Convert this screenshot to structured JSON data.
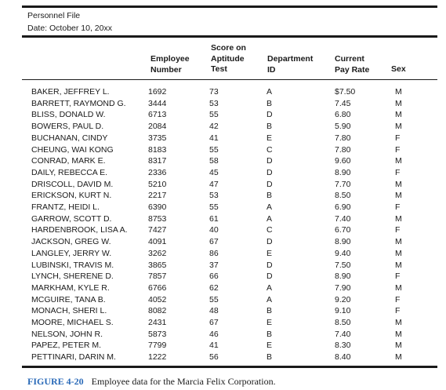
{
  "header": {
    "line1": "Personnel File",
    "line2": "Date: October 10, 20xx"
  },
  "columns": {
    "emp": [
      "Employee",
      "Number"
    ],
    "score": [
      "Score on",
      "Aptitude",
      "Test"
    ],
    "dept": [
      "Department",
      "ID"
    ],
    "pay": [
      "Current",
      "Pay Rate"
    ],
    "sex": [
      "Sex"
    ]
  },
  "rows": [
    {
      "name": "BAKER, JEFFREY L.",
      "emp": "1692",
      "score": "73",
      "dept": "A",
      "pay": "$7.50",
      "sex": "M"
    },
    {
      "name": "BARRETT, RAYMOND G.",
      "emp": "3444",
      "score": "53",
      "dept": "B",
      "pay": "7.45",
      "sex": "M"
    },
    {
      "name": "BLISS, DONALD W.",
      "emp": "6713",
      "score": "55",
      "dept": "D",
      "pay": "6.80",
      "sex": "M"
    },
    {
      "name": "BOWERS, PAUL D.",
      "emp": "2084",
      "score": "42",
      "dept": "B",
      "pay": "5.90",
      "sex": "M"
    },
    {
      "name": "BUCHANAN, CINDY",
      "emp": "3735",
      "score": "41",
      "dept": "E",
      "pay": "7.80",
      "sex": "F"
    },
    {
      "name": "CHEUNG, WAI KONG",
      "emp": "8183",
      "score": "55",
      "dept": "C",
      "pay": "7.80",
      "sex": "F"
    },
    {
      "name": "CONRAD, MARK E.",
      "emp": "8317",
      "score": "58",
      "dept": "D",
      "pay": "9.60",
      "sex": "M"
    },
    {
      "name": "DAILY, REBECCA E.",
      "emp": "2336",
      "score": "45",
      "dept": "D",
      "pay": "8.90",
      "sex": "F"
    },
    {
      "name": "DRISCOLL, DAVID M.",
      "emp": "5210",
      "score": "47",
      "dept": "D",
      "pay": "7.70",
      "sex": "M"
    },
    {
      "name": "ERICKSON, KURT N.",
      "emp": "2217",
      "score": "53",
      "dept": "B",
      "pay": "8.50",
      "sex": "M"
    },
    {
      "name": "FRANTZ, HEIDI L.",
      "emp": "6390",
      "score": "55",
      "dept": "A",
      "pay": "6.90",
      "sex": "F"
    },
    {
      "name": "GARROW, SCOTT D.",
      "emp": "8753",
      "score": "61",
      "dept": "A",
      "pay": "7.40",
      "sex": "M"
    },
    {
      "name": "HARDENBROOK, LISA A.",
      "emp": "7427",
      "score": "40",
      "dept": "C",
      "pay": "6.70",
      "sex": "F"
    },
    {
      "name": "JACKSON, GREG W.",
      "emp": "4091",
      "score": "67",
      "dept": "D",
      "pay": "8.90",
      "sex": "M"
    },
    {
      "name": "LANGLEY, JERRY W.",
      "emp": "3262",
      "score": "86",
      "dept": "E",
      "pay": "9.40",
      "sex": "M"
    },
    {
      "name": "LUBINSKI, TRAVIS M.",
      "emp": "3865",
      "score": "37",
      "dept": "D",
      "pay": "7.50",
      "sex": "M"
    },
    {
      "name": "LYNCH, SHERENE D.",
      "emp": "7857",
      "score": "66",
      "dept": "D",
      "pay": "8.90",
      "sex": "F"
    },
    {
      "name": "MARKHAM, KYLE R.",
      "emp": "6766",
      "score": "62",
      "dept": "A",
      "pay": "7.90",
      "sex": "M"
    },
    {
      "name": "MCGUIRE, TANA B.",
      "emp": "4052",
      "score": "55",
      "dept": "A",
      "pay": "9.20",
      "sex": "F"
    },
    {
      "name": "MONACH, SHERI L.",
      "emp": "8082",
      "score": "48",
      "dept": "B",
      "pay": "9.10",
      "sex": "F"
    },
    {
      "name": "MOORE, MICHAEL S.",
      "emp": "2431",
      "score": "67",
      "dept": "E",
      "pay": "8.50",
      "sex": "M"
    },
    {
      "name": "NELSON, JOHN R.",
      "emp": "5873",
      "score": "46",
      "dept": "B",
      "pay": "7.40",
      "sex": "M"
    },
    {
      "name": "PAPEZ, PETER M.",
      "emp": "7799",
      "score": "41",
      "dept": "E",
      "pay": "8.30",
      "sex": "M"
    },
    {
      "name": "PETTINARI, DARIN M.",
      "emp": "1222",
      "score": "56",
      "dept": "B",
      "pay": "8.40",
      "sex": "M"
    }
  ],
  "caption": {
    "figure_label": "FIGURE 4-20",
    "text": "Employee data for the Marcia Felix Corporation.",
    "label_color": "#2a6ab8"
  }
}
